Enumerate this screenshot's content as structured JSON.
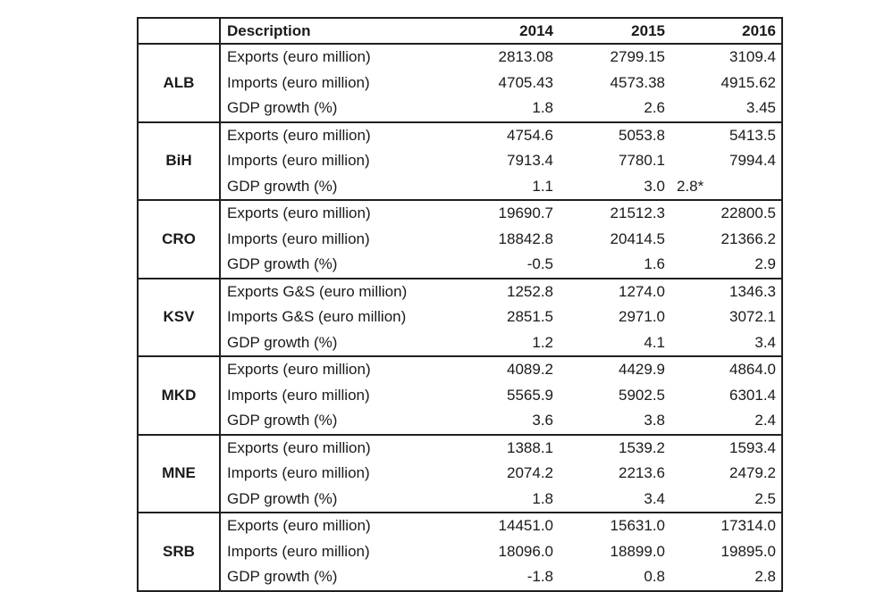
{
  "colors": {
    "background": "#ffffff",
    "border": "#1f1f1f",
    "text": "#1a1a1a"
  },
  "table": {
    "header": {
      "description": "Description",
      "years": [
        "2014",
        "2015",
        "2016"
      ]
    },
    "groups": [
      {
        "code": "ALB",
        "rows": [
          {
            "label": "Exports (euro million)",
            "values": [
              "2813.08",
              "2799.15",
              "3109.4"
            ]
          },
          {
            "label": "Imports (euro million)",
            "values": [
              "4705.43",
              "4573.38",
              "4915.62"
            ]
          },
          {
            "label": "GDP growth (%)",
            "values": [
              "1.8",
              "2.6",
              "3.45"
            ]
          }
        ]
      },
      {
        "code": "BiH",
        "rows": [
          {
            "label": "Exports (euro million)",
            "values": [
              "4754.6",
              "5053.8",
              "5413.5"
            ]
          },
          {
            "label": "Imports (euro million)",
            "values": [
              "7913.4",
              "7780.1",
              "7994.4"
            ]
          },
          {
            "label": "GDP growth (%)",
            "values": [
              "1.1",
              "3.0",
              "2.8*"
            ],
            "aligns": [
              "right",
              "right",
              "left"
            ]
          }
        ]
      },
      {
        "code": "CRO",
        "rows": [
          {
            "label": "Exports (euro million)",
            "values": [
              "19690.7",
              "21512.3",
              "22800.5"
            ]
          },
          {
            "label": "Imports (euro million)",
            "values": [
              "18842.8",
              "20414.5",
              "21366.2"
            ]
          },
          {
            "label": "GDP growth (%)",
            "values": [
              "-0.5",
              "1.6",
              "2.9"
            ]
          }
        ]
      },
      {
        "code": "KSV",
        "rows": [
          {
            "label": "Exports G&S (euro million)",
            "values": [
              "1252.8",
              "1274.0",
              "1346.3"
            ]
          },
          {
            "label": "Imports G&S (euro million)",
            "values": [
              "2851.5",
              "2971.0",
              "3072.1"
            ]
          },
          {
            "label": "GDP growth (%)",
            "values": [
              "1.2",
              "4.1",
              "3.4"
            ]
          }
        ]
      },
      {
        "code": "MKD",
        "rows": [
          {
            "label": "Exports (euro million)",
            "values": [
              "4089.2",
              "4429.9",
              "4864.0"
            ]
          },
          {
            "label": "Imports (euro million)",
            "values": [
              "5565.9",
              "5902.5",
              "6301.4"
            ]
          },
          {
            "label": "GDP growth (%)",
            "values": [
              "3.6",
              "3.8",
              "2.4"
            ]
          }
        ]
      },
      {
        "code": "MNE",
        "rows": [
          {
            "label": "Exports (euro million)",
            "values": [
              "1388.1",
              "1539.2",
              "1593.4"
            ]
          },
          {
            "label": "Imports (euro million)",
            "values": [
              "2074.2",
              "2213.6",
              "2479.2"
            ]
          },
          {
            "label": "GDP growth (%)",
            "values": [
              "1.8",
              "3.4",
              "2.5"
            ]
          }
        ]
      },
      {
        "code": "SRB",
        "rows": [
          {
            "label": "Exports (euro million)",
            "values": [
              "14451.0",
              "15631.0",
              "17314.0"
            ]
          },
          {
            "label": "Imports (euro million)",
            "values": [
              "18096.0",
              "18899.0",
              "19895.0"
            ]
          },
          {
            "label": "GDP growth (%)",
            "values": [
              "-1.8",
              "0.8",
              "2.8"
            ]
          }
        ]
      }
    ]
  }
}
